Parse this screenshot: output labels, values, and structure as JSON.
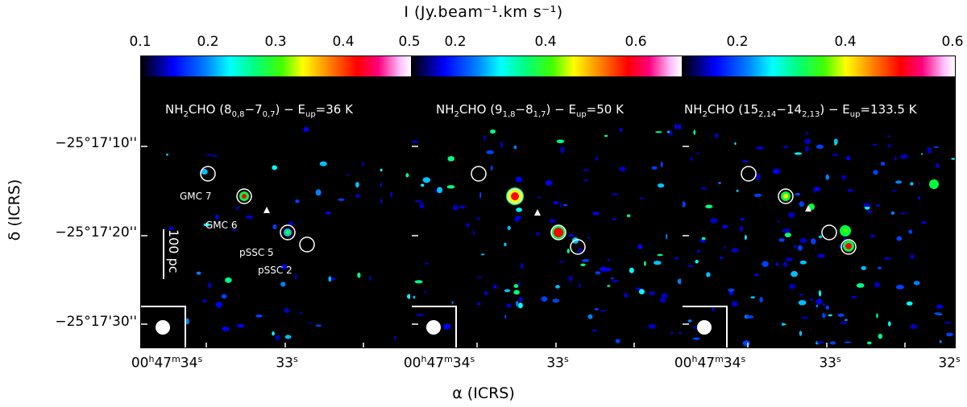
{
  "colorbar_title": "I (Jy.beam⁻¹.km s⁻¹)",
  "panels": [
    {
      "title_parts": {
        "mol": "NH",
        "sub1": "2",
        "mol2": "CHO (8",
        "q1": "0,8",
        "dash": "−7",
        "q2": "0,7",
        "rest": ") − E",
        "eup": "up",
        "val": "=36 K"
      },
      "colorbar_ticks": [
        "0.1",
        "0.2",
        "0.3",
        "0.4",
        "0.5"
      ],
      "range": [
        0.1,
        0.5
      ]
    },
    {
      "title_parts": {
        "mol": "NH",
        "sub1": "2",
        "mol2": "CHO (9",
        "q1": "1,8",
        "dash": "−8",
        "q2": "1,7",
        "rest": ") − E",
        "eup": "up",
        "val": "=50 K"
      },
      "colorbar_ticks": [
        "0.2",
        "0.4",
        "0.6"
      ],
      "range": [
        0.1,
        0.7
      ]
    },
    {
      "title_parts": {
        "mol": "NH",
        "sub1": "2",
        "mol2": "CHO (15",
        "q1": "2,14",
        "dash": "−14",
        "q2": "2,13",
        "rest": ") − E",
        "eup": "up",
        "val": "=133.5 K"
      },
      "colorbar_ticks": [
        "0.2",
        "0.4",
        "0.6"
      ],
      "range": [
        0.1,
        0.6
      ]
    }
  ],
  "source_labels": [
    "GMC 7",
    "GMC 6",
    "pSSC 5",
    "pSSC 2"
  ],
  "scalebar_label": "100 pc",
  "y_axis": {
    "title": "δ (ICRS)",
    "ticks": [
      "−25°17'10''",
      "−25°17'20''",
      "−25°17'30''"
    ]
  },
  "x_axis": {
    "title": "α (ICRS)",
    "tick_34": {
      "h": "00",
      "hs": "h",
      "m": "47",
      "ms": "m",
      "s": "34",
      "ss": "s"
    },
    "tick_33": {
      "s": "33",
      "ss": "s"
    },
    "tick_32": {
      "s": "32",
      "ss": "s"
    }
  },
  "colors": {
    "background": "#000000",
    "markers": "#ffffff"
  }
}
